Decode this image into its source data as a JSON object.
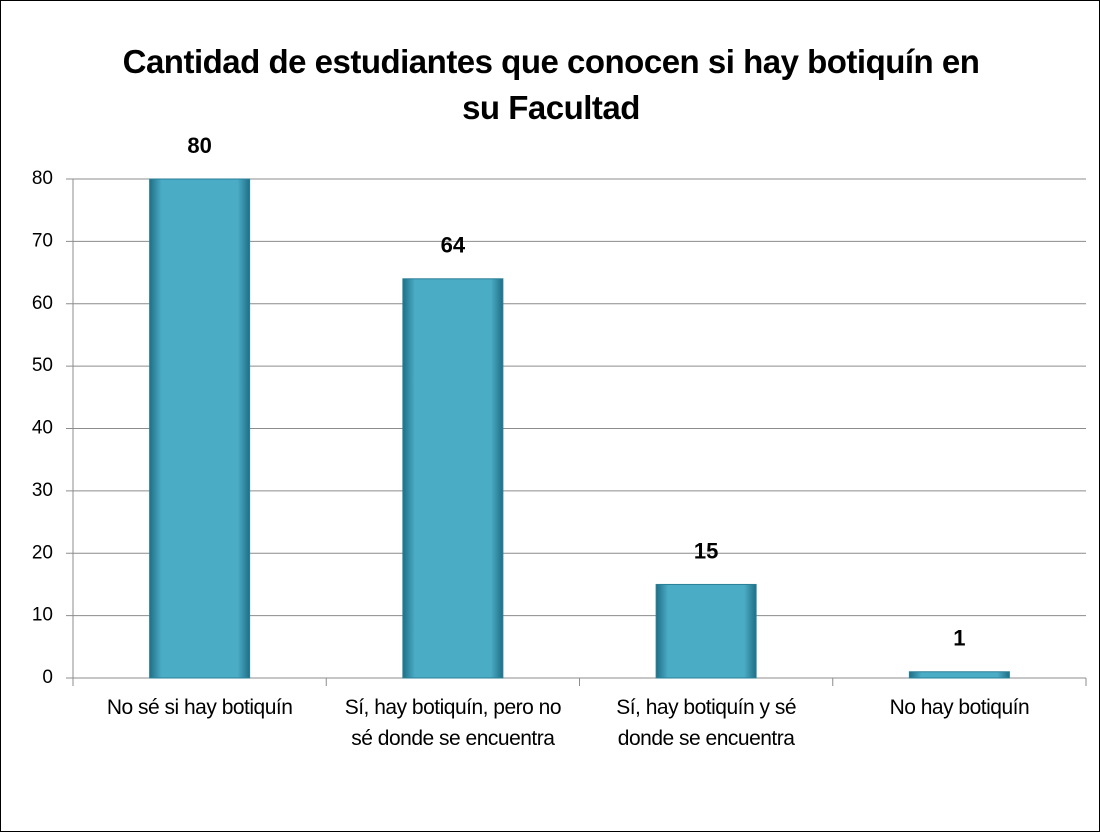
{
  "chart_data": {
    "type": "bar",
    "title": "Cantidad de estudiantes que conocen si hay botiquín en su Facultad",
    "categories": [
      "No sé si hay botiquín",
      "Sí, hay botiquín, pero no sé donde se encuentra",
      "Sí, hay botiquín y sé donde se encuentra",
      "No hay botiquín"
    ],
    "values": [
      80,
      64,
      15,
      1
    ],
    "color": "#4bacc6",
    "ylim": [
      0,
      80
    ],
    "yticks": [
      0,
      10,
      20,
      30,
      40,
      50,
      60,
      70,
      80
    ],
    "grid": true
  }
}
